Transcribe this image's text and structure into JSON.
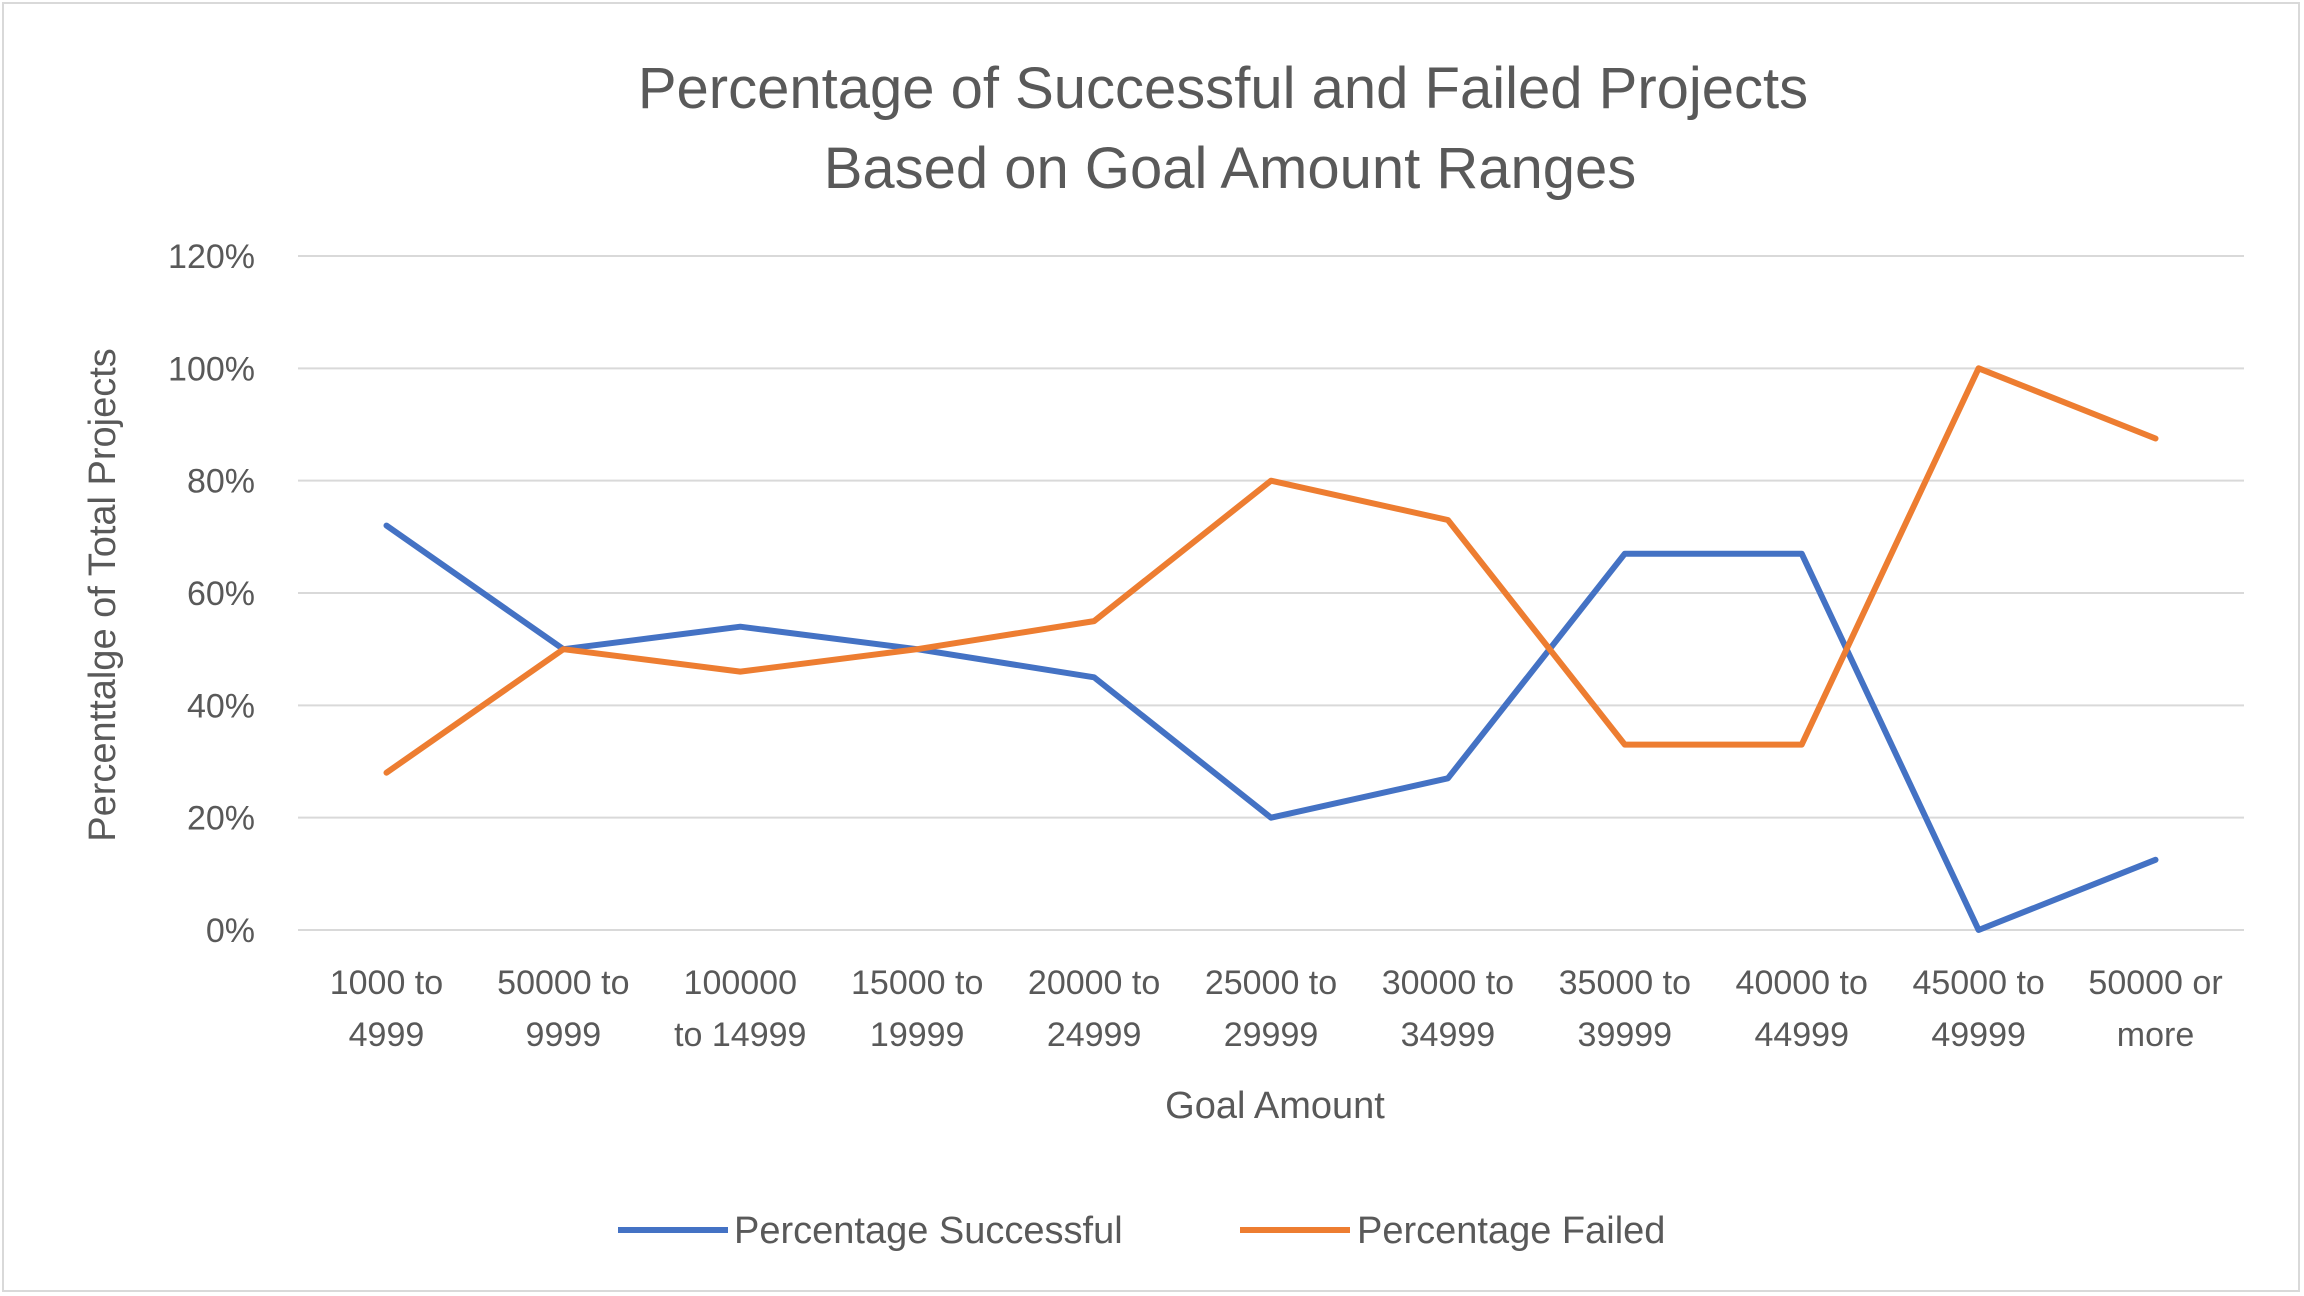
{
  "chart_data": {
    "type": "line",
    "title_lines": [
      "Percentage of Successful and Failed Projects",
      "Based on Goal Amount Ranges"
    ],
    "xlabel": "Goal Amount",
    "ylabel": "Percenttalge of Total Projects",
    "ylim": [
      0,
      1.2
    ],
    "yticks": [
      {
        "value": 0,
        "label": "0%"
      },
      {
        "value": 0.2,
        "label": "20%"
      },
      {
        "value": 0.4,
        "label": "40%"
      },
      {
        "value": 0.6,
        "label": "60%"
      },
      {
        "value": 0.8,
        "label": "80%"
      },
      {
        "value": 1.0,
        "label": "100%"
      },
      {
        "value": 1.2,
        "label": "120%"
      }
    ],
    "grid": true,
    "legend_position": "bottom",
    "categories": [
      [
        "1000 to",
        "4999"
      ],
      [
        "50000 to",
        "9999"
      ],
      [
        "100000",
        "to 14999"
      ],
      [
        "15000 to",
        "19999"
      ],
      [
        "20000 to",
        "24999"
      ],
      [
        "25000 to",
        "29999"
      ],
      [
        "30000 to",
        "34999"
      ],
      [
        "35000 to",
        "39999"
      ],
      [
        "40000 to",
        "44999"
      ],
      [
        "45000 to",
        "49999"
      ],
      [
        "50000 or",
        "more"
      ]
    ],
    "series": [
      {
        "name": "Percentage Successful",
        "color": "#4472c4",
        "values": [
          0.72,
          0.5,
          0.54,
          0.5,
          0.45,
          0.2,
          0.27,
          0.67,
          0.67,
          0.0,
          0.125
        ]
      },
      {
        "name": "Percentage Failed",
        "color": "#ed7d31",
        "values": [
          0.28,
          0.5,
          0.46,
          0.5,
          0.55,
          0.8,
          0.73,
          0.33,
          0.33,
          1.0,
          0.875
        ]
      }
    ],
    "gridline_color": "#d9d9d9"
  }
}
